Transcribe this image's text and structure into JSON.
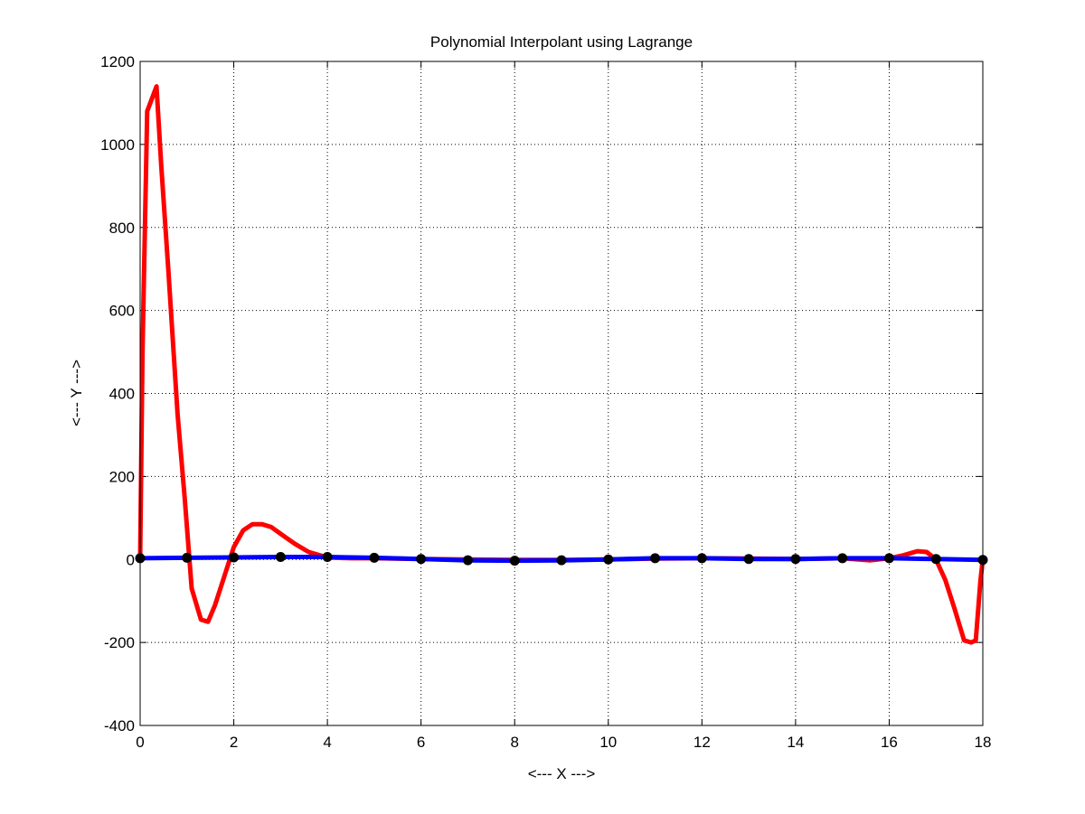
{
  "chart_data": {
    "type": "line",
    "title": "Polynomial Interpolant using Lagrange",
    "xlabel": "<--- X --->",
    "ylabel": "<--- Y --->",
    "xlim": [
      0,
      18
    ],
    "ylim": [
      -400,
      1200
    ],
    "xticks": [
      0,
      2,
      4,
      6,
      8,
      10,
      12,
      14,
      16,
      18
    ],
    "yticks": [
      -400,
      -200,
      0,
      200,
      400,
      600,
      800,
      1000,
      1200
    ],
    "grid": true,
    "legend": "none",
    "series": [
      {
        "role": "interpolant",
        "color": "#ff0000",
        "x": [
          0,
          0.05,
          0.15,
          0.35,
          0.45,
          0.6,
          0.8,
          0.95,
          1.1,
          1.3,
          1.45,
          1.6,
          1.8,
          2.0,
          2.2,
          2.4,
          2.6,
          2.8,
          3.0,
          3.3,
          3.6,
          4.0,
          4.5,
          5.0,
          6.0,
          7.0,
          8.0,
          9.0,
          10.0,
          11.0,
          12.0,
          13.0,
          14.0,
          15.0,
          15.6,
          16.0,
          16.3,
          16.6,
          16.8,
          17.0,
          17.2,
          17.4,
          17.6,
          17.75,
          17.85,
          17.95,
          18.0
        ],
        "y": [
          0,
          500,
          1080,
          1140,
          950,
          700,
          350,
          150,
          -70,
          -145,
          -150,
          -110,
          -40,
          30,
          70,
          85,
          85,
          78,
          62,
          38,
          18,
          5,
          3,
          3,
          1,
          0,
          -1,
          -1,
          0,
          2,
          3,
          2,
          1,
          3,
          -2,
          3,
          10,
          20,
          18,
          0,
          -50,
          -120,
          -195,
          -200,
          -195,
          -50,
          0
        ]
      },
      {
        "role": "data",
        "color": "#0000ff",
        "x": [
          0,
          1,
          2,
          3,
          4,
          5,
          6,
          7,
          8,
          9,
          10,
          11,
          12,
          13,
          14,
          15,
          16,
          17,
          18
        ],
        "y": [
          3,
          4,
          5,
          6,
          6,
          4,
          1,
          -2,
          -3,
          -2,
          0,
          3,
          3,
          1,
          1,
          3,
          3,
          1,
          -1
        ]
      }
    ],
    "markers": {
      "color": "#000000",
      "x": [
        0,
        1,
        2,
        3,
        4,
        5,
        6,
        7,
        8,
        9,
        10,
        11,
        12,
        13,
        14,
        15,
        16,
        17,
        18
      ],
      "y": [
        3,
        4,
        5,
        6,
        6,
        4,
        1,
        -2,
        -3,
        -2,
        0,
        3,
        3,
        1,
        1,
        3,
        3,
        1,
        -1
      ]
    }
  }
}
